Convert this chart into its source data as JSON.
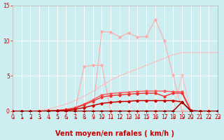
{
  "background_color": "#cdeef0",
  "grid_color": "#ffffff",
  "xlim": [
    0,
    23
  ],
  "ylim": [
    0,
    15
  ],
  "yticks": [
    0,
    5,
    10,
    15
  ],
  "xticks": [
    0,
    1,
    2,
    3,
    4,
    5,
    6,
    7,
    8,
    9,
    10,
    11,
    12,
    13,
    14,
    15,
    16,
    17,
    18,
    19,
    20,
    21,
    22,
    23
  ],
  "xlabel": "Vent moyen/en rafales ( km/h )",
  "xlabel_color": "#cc0000",
  "xlabel_fontsize": 7,
  "tick_fontsize": 5.5,
  "tick_color": "#cc0000",
  "lines": [
    {
      "x": [
        0,
        1,
        2,
        3,
        4,
        5,
        6,
        7,
        8,
        9,
        10,
        11,
        12,
        13,
        14,
        15,
        16,
        17,
        18,
        19,
        20,
        21,
        22,
        23
      ],
      "y": [
        0,
        0,
        0,
        0,
        0,
        0,
        0,
        0,
        0,
        0,
        11.3,
        11.2,
        10.5,
        11.1,
        10.5,
        10.6,
        13.0,
        10.0,
        5.1,
        0.05,
        0.0,
        0.0,
        0.0,
        0.0
      ],
      "color": "#ffaaaa",
      "lw": 0.8,
      "marker": "D",
      "ms": 1.8,
      "zorder": 2
    },
    {
      "x": [
        0,
        1,
        2,
        3,
        4,
        5,
        6,
        7,
        8,
        9,
        10,
        11,
        12,
        13,
        14,
        15,
        16,
        17,
        18,
        19,
        20,
        21,
        22,
        23
      ],
      "y": [
        0,
        0,
        0,
        0,
        0,
        0,
        0,
        0,
        6.3,
        6.5,
        6.5,
        0,
        0,
        0,
        0,
        0,
        0,
        0,
        0,
        0,
        0,
        0,
        0,
        0
      ],
      "color": "#ffaaaa",
      "lw": 0.8,
      "marker": "D",
      "ms": 1.8,
      "zorder": 2
    },
    {
      "x": [
        0,
        1,
        2,
        3,
        4,
        5,
        6,
        7,
        8,
        9,
        10,
        11,
        12,
        13,
        14,
        15,
        16,
        17,
        18,
        19,
        20,
        21,
        22,
        23
      ],
      "y": [
        0,
        0,
        0,
        0,
        0,
        0,
        0,
        0,
        0,
        0,
        0,
        0,
        0,
        0,
        0,
        0,
        0,
        0,
        0,
        5.1,
        0.05,
        0.0,
        0.05,
        0.0
      ],
      "color": "#ffbbbb",
      "lw": 0.8,
      "marker": "D",
      "ms": 1.8,
      "zorder": 2
    },
    {
      "x": [
        0,
        1,
        2,
        3,
        4,
        5,
        6,
        7,
        8,
        9,
        10,
        11,
        12,
        13,
        14,
        15,
        16,
        17,
        18,
        19,
        20,
        21,
        22,
        23
      ],
      "y": [
        0,
        0,
        0,
        0.1,
        0.3,
        0.6,
        1.0,
        1.5,
        2.1,
        2.8,
        3.6,
        4.4,
        5.0,
        5.5,
        6.0,
        6.5,
        7.0,
        7.5,
        8.0,
        8.3,
        8.3,
        8.3,
        8.3,
        8.3
      ],
      "color": "#ffbbbb",
      "lw": 0.8,
      "marker": null,
      "ms": 0,
      "zorder": 1
    },
    {
      "x": [
        0,
        1,
        2,
        3,
        4,
        5,
        6,
        7,
        8,
        9,
        10,
        11,
        12,
        13,
        14,
        15,
        16,
        17,
        18,
        19,
        20,
        21,
        22,
        23
      ],
      "y": [
        0,
        0,
        0,
        0,
        0.05,
        0.1,
        0.25,
        0.5,
        1.0,
        1.6,
        2.3,
        2.5,
        2.6,
        2.7,
        2.8,
        2.85,
        2.85,
        2.85,
        2.75,
        2.75,
        0.1,
        0.0,
        0.0,
        0.0
      ],
      "color": "#ff5555",
      "lw": 1.0,
      "marker": "D",
      "ms": 1.8,
      "zorder": 3
    },
    {
      "x": [
        0,
        1,
        2,
        3,
        4,
        5,
        6,
        7,
        8,
        9,
        10,
        11,
        12,
        13,
        14,
        15,
        16,
        17,
        18,
        19,
        20,
        21,
        22,
        23
      ],
      "y": [
        0,
        0,
        0,
        0,
        0.05,
        0.1,
        0.2,
        0.4,
        0.9,
        1.4,
        2.0,
        2.2,
        2.3,
        2.4,
        2.5,
        2.55,
        2.55,
        2.1,
        2.55,
        2.55,
        0.0,
        0.0,
        0.0,
        0.0
      ],
      "color": "#ee3333",
      "lw": 1.0,
      "marker": "D",
      "ms": 1.8,
      "zorder": 3
    },
    {
      "x": [
        0,
        1,
        2,
        3,
        4,
        5,
        6,
        7,
        8,
        9,
        10,
        11,
        12,
        13,
        14,
        15,
        16,
        17,
        18,
        19,
        20,
        21,
        22,
        23
      ],
      "y": [
        0,
        0,
        0,
        0,
        0,
        0.05,
        0.1,
        0.25,
        0.5,
        0.8,
        1.1,
        1.25,
        1.35,
        1.4,
        1.5,
        1.5,
        1.5,
        1.5,
        1.5,
        1.3,
        0.0,
        0.0,
        0.0,
        0.0
      ],
      "color": "#cc0000",
      "lw": 1.1,
      "marker": "D",
      "ms": 1.8,
      "zorder": 4
    },
    {
      "x": [
        0,
        1,
        2,
        3,
        4,
        5,
        6,
        7,
        8,
        9,
        10,
        11,
        12,
        13,
        14,
        15,
        16,
        17,
        18,
        19,
        20,
        21,
        22,
        23
      ],
      "y": [
        0,
        0,
        0,
        0,
        0,
        0,
        0,
        0,
        0,
        0,
        0,
        0,
        0,
        0,
        0,
        0,
        0,
        0,
        0,
        1.3,
        0.05,
        0.0,
        0.0,
        0.0
      ],
      "color": "#990000",
      "lw": 1.1,
      "marker": "D",
      "ms": 1.8,
      "zorder": 4
    }
  ]
}
